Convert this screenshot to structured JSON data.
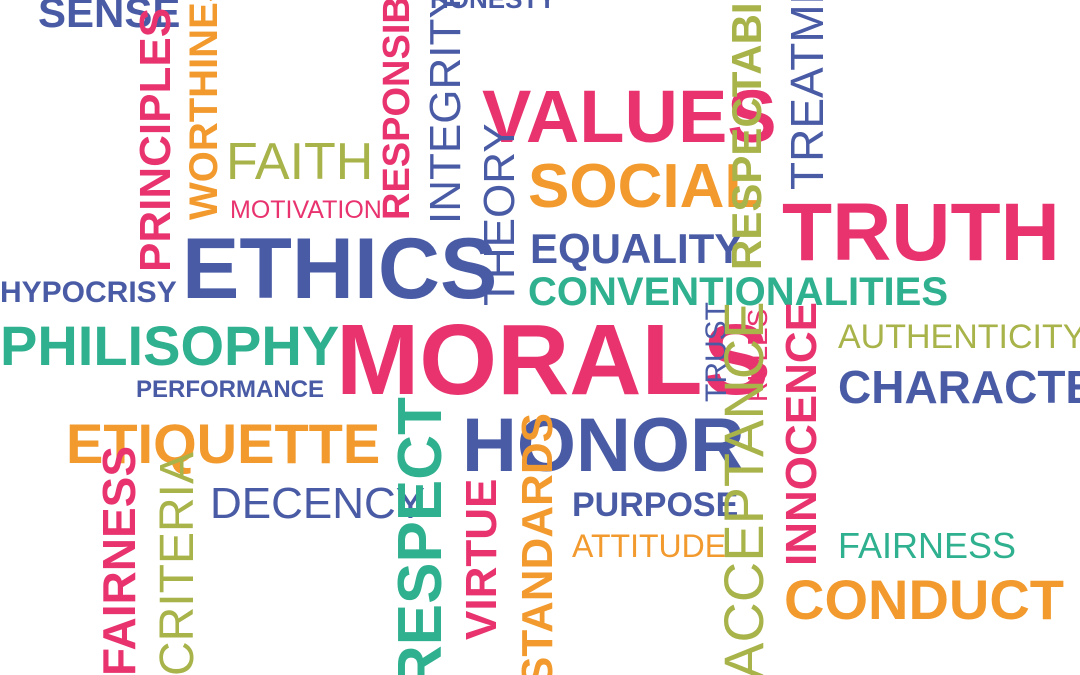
{
  "colors": {
    "blue": "#4a5ba6",
    "pink": "#e8336f",
    "orange": "#f29a2e",
    "green": "#2fb08f",
    "olive": "#a8b34a"
  },
  "words": {
    "sense": "SENSE",
    "worthiness": "WORTHINESS",
    "honesty": "HONESTY",
    "responsibility": "RESPONSIBILITY",
    "respectability": "RESPECTABILITY",
    "treatment": "TREATMENT",
    "principles": "PRINCIPLES",
    "integrity": "INTEGRITY",
    "values": "VALUES",
    "faith": "FAITH",
    "motivation": "MOTIVATION",
    "theory": "THEORY",
    "social": "SOCIAL",
    "truth": "TRUTH",
    "ethics": "ETHICS",
    "equality": "EQUALITY",
    "hypocrisy": "HYPOCRISY",
    "conventionalities": "CONVENTIONALITIES",
    "philisophy": "PHILISOPHY",
    "morals": "MORALS",
    "trust": "TRUST",
    "rules": "RULES",
    "innocence": "INNOCENCE",
    "authenticity": "AUTHENTICITY",
    "performance": "PERFORMANCE",
    "character": "CHARACTER",
    "etiquette": "ETIQUETTE",
    "respect": "RESPECT",
    "honor": "HONOR",
    "acceptance": "ACCEPTANCE",
    "fairness_v": "FAIRNESS",
    "criteria": "CRITERIA",
    "decency": "DECENCY",
    "virtue": "VIRTUE",
    "standards": "STANDARDS",
    "purpose": "PURPOSE",
    "attitude": "ATTITUDE",
    "fairness_h": "FAIRNESS",
    "conduct": "CONDUCT"
  }
}
